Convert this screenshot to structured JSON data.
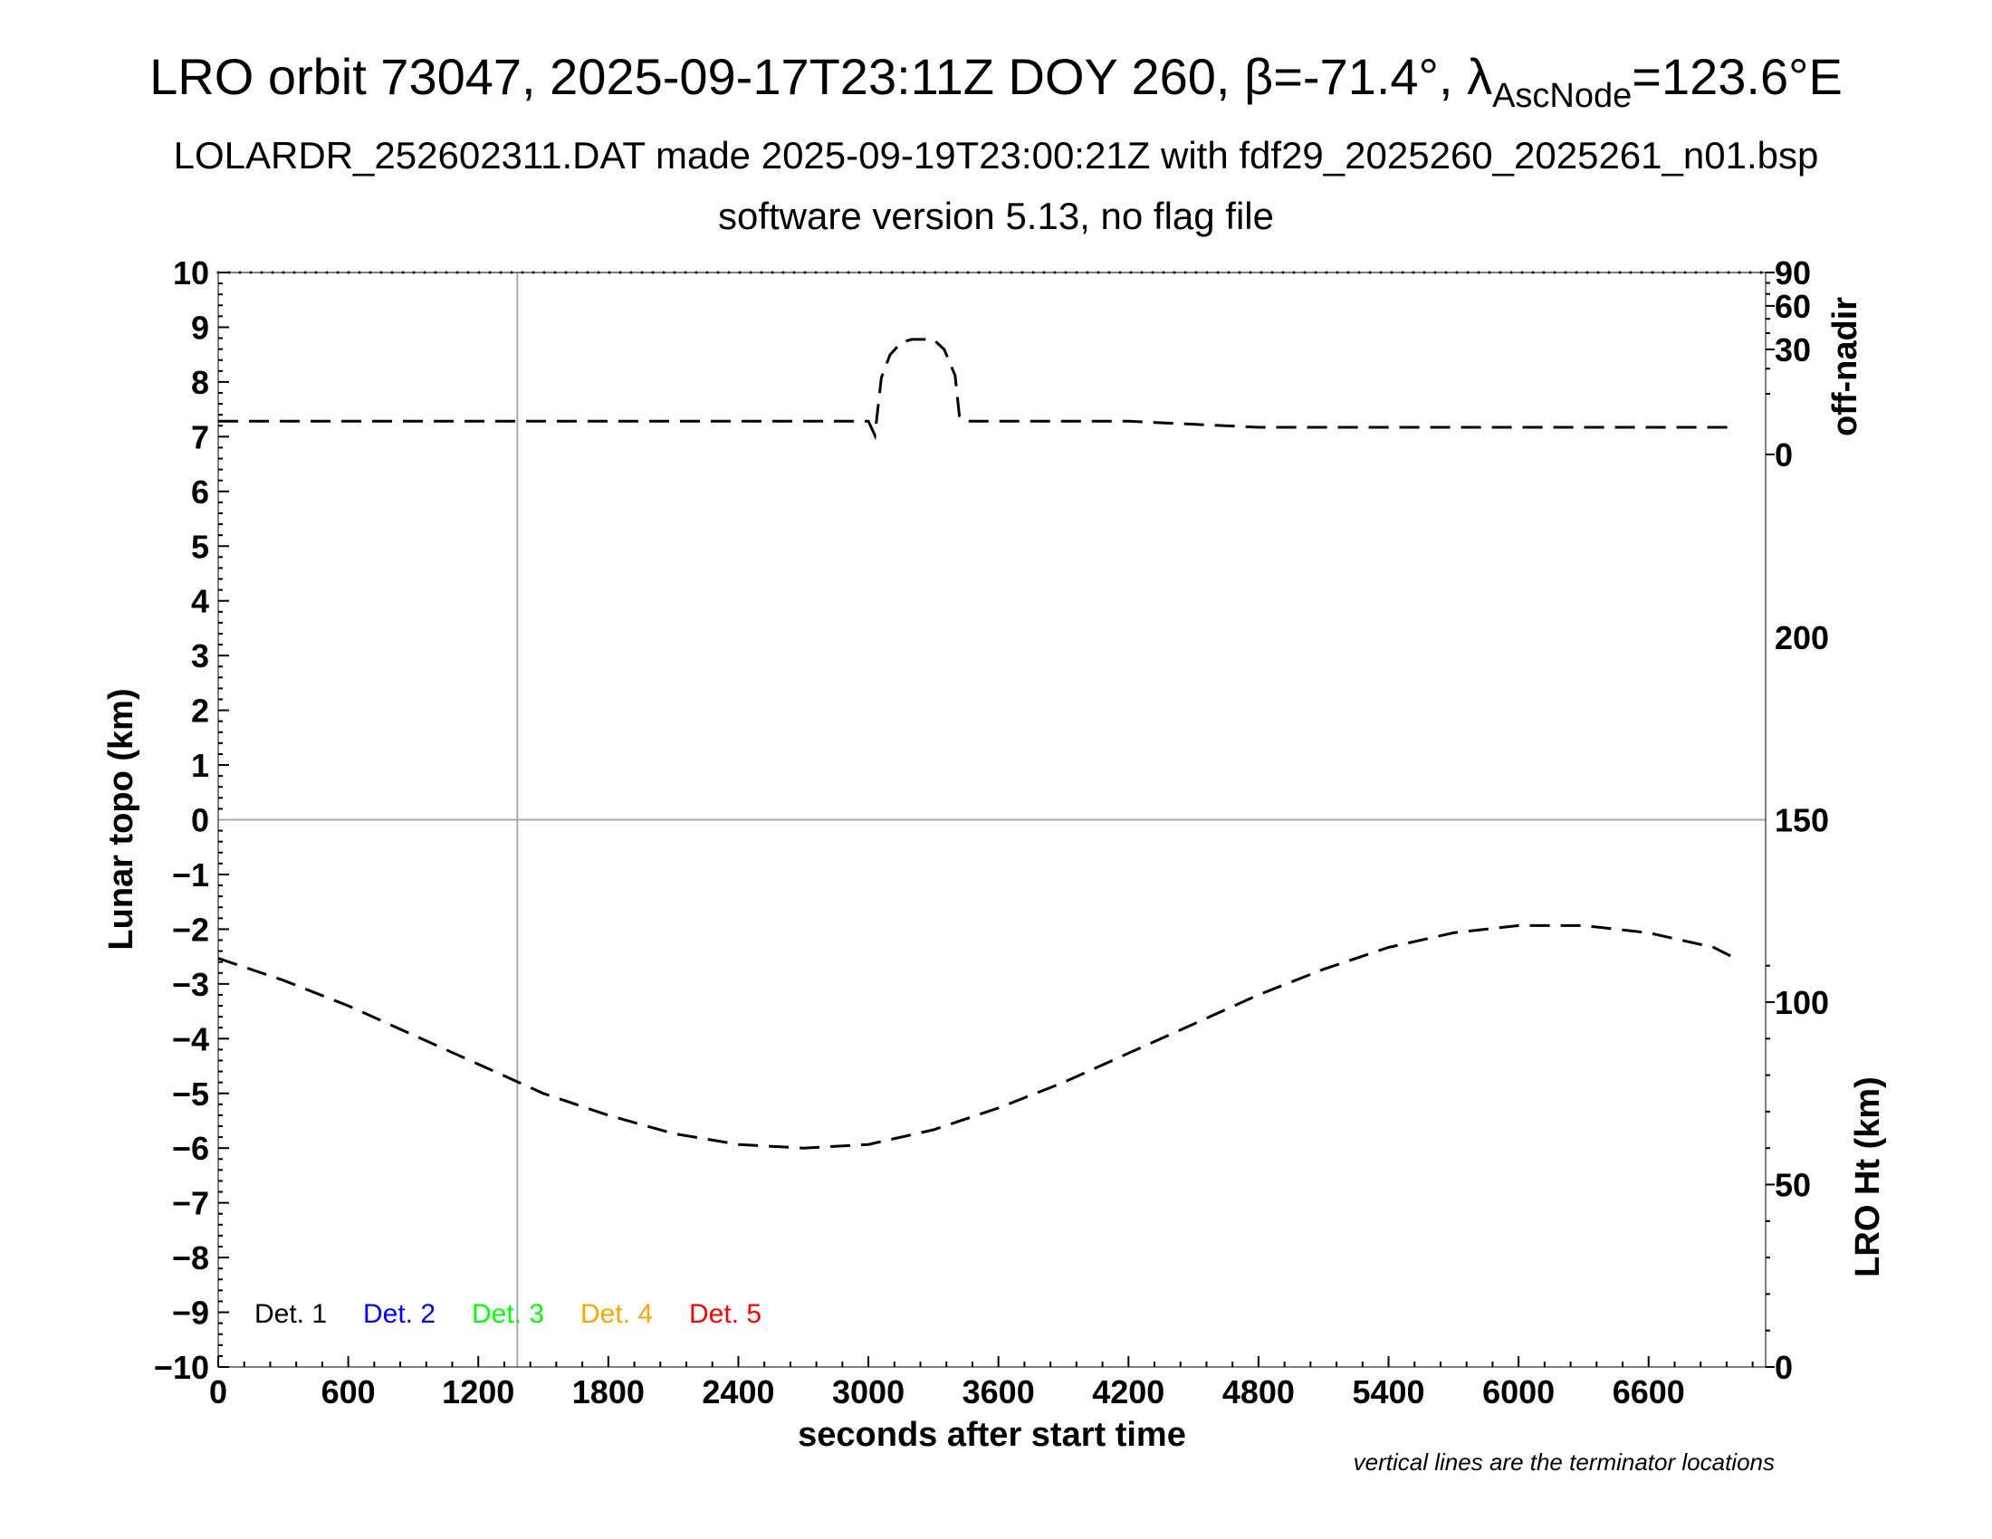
{
  "title": {
    "main": "LRO orbit 73047, 2025-09-17T23:11Z DOY 260, β=-71.4°, λ",
    "sub": "AscNode",
    "tail": "=123.6°E"
  },
  "subtitle_line1": "LOLARDR_252602311.DAT made 2025-09-19T23:00:21Z with fdf29_2025260_2025261_n01.bsp",
  "subtitle_line2": "software version 5.13, no flag file",
  "note": "vertical lines are the terminator locations",
  "chart_data": {
    "type": "line",
    "xlabel": "seconds after start time",
    "ylabel_left": "Lunar topo (km)",
    "ylabel_right_top": "off-nadir",
    "ylabel_right_bottom": "LRO Ht (km)",
    "xlim": [
      0,
      7140
    ],
    "ylim": [
      -10,
      10
    ],
    "x_ticks": [
      "0",
      "600",
      "1200",
      "1800",
      "2400",
      "3000",
      "3600",
      "4200",
      "4800",
      "5400",
      "6000",
      "6600"
    ],
    "y_ticks": [
      "−10",
      "−9",
      "−8",
      "−7",
      "−6",
      "−5",
      "−4",
      "−3",
      "−2",
      "−1",
      "0",
      "1",
      "2",
      "3",
      "4",
      "5",
      "6",
      "7",
      "8",
      "9",
      "10"
    ],
    "off_nadir_ticks": [
      "90",
      "60",
      "30",
      "0"
    ],
    "lro_ht_ticks": [
      "200",
      "150",
      "100",
      "50",
      "0"
    ],
    "terminator_x": [
      1380
    ],
    "zero_line_y": 0,
    "legend": [
      {
        "label": "Det. 1",
        "color": "#000000"
      },
      {
        "label": "Det. 2",
        "color": "#0000ff"
      },
      {
        "label": "Det. 3",
        "color": "#00ff00"
      },
      {
        "label": "Det. 4",
        "color": "#ffa500"
      },
      {
        "label": "Det. 5",
        "color": "#ff0000"
      }
    ],
    "series": [
      {
        "name": "off-nadir",
        "axis": "off-nadir (deg)",
        "style": "dashed",
        "x": [
          0,
          600,
          1200,
          1800,
          2400,
          3000,
          3030,
          3060,
          3100,
          3150,
          3200,
          3250,
          3300,
          3350,
          3400,
          3420,
          3440,
          3600,
          4200,
          4800,
          5400,
          6000,
          6600,
          7000
        ],
        "y": [
          3,
          3,
          3,
          3,
          3,
          3,
          1,
          16,
          27,
          34,
          36,
          36,
          36,
          30,
          17,
          4,
          3,
          3,
          3,
          2,
          2,
          2,
          2,
          2
        ]
      },
      {
        "name": "LRO Ht",
        "axis": "LRO Ht (km)",
        "style": "dashed",
        "x": [
          0,
          300,
          600,
          900,
          1200,
          1500,
          1800,
          2100,
          2400,
          2700,
          3000,
          3300,
          3600,
          3900,
          4200,
          4500,
          4800,
          5100,
          5400,
          5700,
          6000,
          6300,
          6600,
          6900,
          7000
        ],
        "y": [
          112,
          106,
          99,
          91,
          83,
          75,
          69,
          64,
          61,
          60,
          61,
          65,
          71,
          78,
          86,
          94,
          102,
          109,
          115,
          119,
          121,
          121,
          119,
          115,
          112
        ]
      }
    ]
  }
}
